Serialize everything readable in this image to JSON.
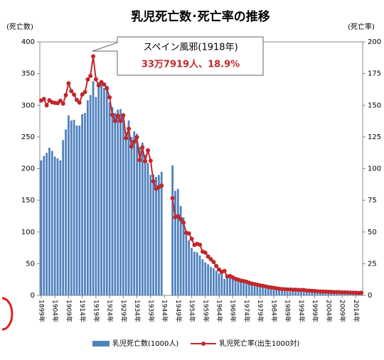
{
  "chart_data": {
    "type": "bar_line",
    "title": "乳児死亡数･死亡率の推移",
    "y_label": "(死亡数)",
    "y2_label": "(死亡率)",
    "annotation": {
      "title": "スペイン風邪(1918年)",
      "text": "33万7919人、18.9%"
    },
    "x": [
      1899,
      1900,
      1901,
      1902,
      1903,
      1904,
      1905,
      1906,
      1907,
      1908,
      1909,
      1910,
      1911,
      1912,
      1913,
      1914,
      1915,
      1916,
      1917,
      1918,
      1919,
      1920,
      1921,
      1922,
      1923,
      1924,
      1925,
      1926,
      1927,
      1928,
      1929,
      1930,
      1931,
      1932,
      1933,
      1934,
      1935,
      1936,
      1937,
      1938,
      1939,
      1940,
      1941,
      1942,
      1943,
      1944,
      1945,
      1946,
      1947,
      1948,
      1949,
      1950,
      1951,
      1952,
      1953,
      1954,
      1955,
      1956,
      1957,
      1958,
      1959,
      1960,
      1961,
      1962,
      1963,
      1964,
      1965,
      1966,
      1967,
      1968,
      1969,
      1970,
      1971,
      1972,
      1973,
      1974,
      1975,
      1976,
      1977,
      1978,
      1979,
      1980,
      1981,
      1982,
      1983,
      1984,
      1985,
      1986,
      1987,
      1988,
      1989,
      1990,
      1991,
      1992,
      1993,
      1994,
      1995,
      1996,
      1997,
      1998,
      1999,
      2000,
      2001,
      2002,
      2003,
      2004,
      2005,
      2006,
      2007,
      2008,
      2009,
      2010,
      2011,
      2012,
      2013,
      2014,
      2015,
      2016
    ],
    "xticks": [
      {
        "value": 1899,
        "label": "1899年"
      },
      {
        "value": 1904,
        "label": "1904年"
      },
      {
        "value": 1909,
        "label": "1909年"
      },
      {
        "value": 1914,
        "label": "1914年"
      },
      {
        "value": 1919,
        "label": "1919年"
      },
      {
        "value": 1924,
        "label": "1924年"
      },
      {
        "value": 1929,
        "label": "1929年"
      },
      {
        "value": 1934,
        "label": "1934年"
      },
      {
        "value": 1939,
        "label": "1939年"
      },
      {
        "value": 1944,
        "label": "1944年"
      },
      {
        "value": 1949,
        "label": "1949年"
      },
      {
        "value": 1954,
        "label": "1954年"
      },
      {
        "value": 1959,
        "label": "1959年"
      },
      {
        "value": 1964,
        "label": "1964年"
      },
      {
        "value": 1969,
        "label": "1969年"
      },
      {
        "value": 1974,
        "label": "1974年"
      },
      {
        "value": 1979,
        "label": "1979年"
      },
      {
        "value": 1984,
        "label": "1984年"
      },
      {
        "value": 1989,
        "label": "1989年"
      },
      {
        "value": 1994,
        "label": "1994年"
      },
      {
        "value": 1999,
        "label": "1999年"
      },
      {
        "value": 2004,
        "label": "2004年"
      },
      {
        "value": 2009,
        "label": "2009年"
      },
      {
        "value": 2014,
        "label": "2014年"
      }
    ],
    "ylim": [
      0,
      400
    ],
    "yticks": [
      0,
      50,
      100,
      150,
      200,
      250,
      300,
      350,
      400
    ],
    "y2lim": [
      0,
      200
    ],
    "y2ticks": [
      0,
      25,
      50,
      75,
      100,
      125,
      150,
      175,
      200
    ],
    "series": [
      {
        "name": "乳児死亡数(1000人)",
        "kind": "bar",
        "axis": "y",
        "color": "#4f81bd",
        "values": [
          213,
          220,
          225,
          233,
          228,
          219,
          216,
          213,
          245,
          262,
          284,
          276,
          277,
          268,
          268,
          286,
          288,
          308,
          316,
          338,
          313,
          336,
          335,
          327,
          331,
          305,
          297,
          288,
          293,
          294,
          284,
          258,
          276,
          250,
          259,
          255,
          234,
          241,
          222,
          209,
          190,
          191,
          187,
          190,
          195,
          null,
          null,
          null,
          205,
          165,
          168,
          141,
          123,
          99,
          87,
          75,
          69,
          68,
          63,
          57,
          52,
          49,
          45,
          43,
          39,
          35,
          34,
          26,
          29,
          29,
          28,
          25,
          25,
          24,
          24,
          22,
          19,
          17,
          16,
          14,
          13,
          12,
          11,
          10,
          9.4,
          8.9,
          7.9,
          7.3,
          6.7,
          6.3,
          5.7,
          5.6,
          5.4,
          5.5,
          5.2,
          5.3,
          5.1,
          4.5,
          4.4,
          4.4,
          4,
          3.8,
          3.6,
          3.5,
          3.4,
          3.1,
          3,
          2.9,
          2.8,
          2.8,
          2.6,
          2.5,
          2.5,
          2.3,
          2.2,
          2.1,
          1.9,
          1.9
        ]
      },
      {
        "name": "乳児死亡率(出生1000対)",
        "kind": "line",
        "axis": "y2",
        "color": "#c0282d",
        "values": [
          153.8,
          155.0,
          149.9,
          154.0,
          152.4,
          151.9,
          151.7,
          153.6,
          151.3,
          158.0,
          167.3,
          161.2,
          158.4,
          154.2,
          152.1,
          158.5,
          160.4,
          170.3,
          173.2,
          188.6,
          170.5,
          165.7,
          168.3,
          166.4,
          163.4,
          156.2,
          142.4,
          137.5,
          141.7,
          137.6,
          142.1,
          124.1,
          131.5,
          117.5,
          121.3,
          124.8,
          106.7,
          116.7,
          105.8,
          114.4,
          106.2,
          90.0,
          84.1,
          85.5,
          86.6,
          null,
          null,
          null,
          76.7,
          61.7,
          62.5,
          60.1,
          57.5,
          49.4,
          48.9,
          44.6,
          39.8,
          40.6,
          40.0,
          34.5,
          33.7,
          30.7,
          28.6,
          26.4,
          23.2,
          20.4,
          18.5,
          19.3,
          14.9,
          15.3,
          14.2,
          13.1,
          12.4,
          11.7,
          11.3,
          10.8,
          10.0,
          9.3,
          8.9,
          8.4,
          7.9,
          7.5,
          7.1,
          6.6,
          6.2,
          6.0,
          5.5,
          5.2,
          5.0,
          4.8,
          4.6,
          4.6,
          4.4,
          4.5,
          4.3,
          4.2,
          4.3,
          3.8,
          3.7,
          3.6,
          3.4,
          3.2,
          3.1,
          3.0,
          3.0,
          2.8,
          2.8,
          2.6,
          2.6,
          2.6,
          2.4,
          2.3,
          2.3,
          2.2,
          2.1,
          2.1,
          1.9,
          2.0
        ]
      }
    ],
    "legend": "bottom"
  }
}
